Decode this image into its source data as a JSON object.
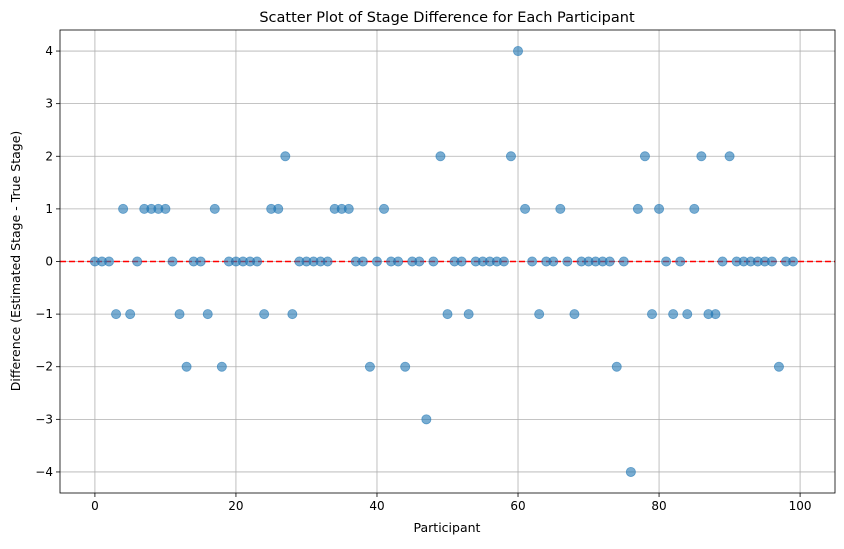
{
  "chart_data": {
    "type": "scatter",
    "title": "Scatter Plot of Stage Difference for Each Participant",
    "xlabel": "Participant",
    "ylabel": "Difference (Estimated Stage - True Stage)",
    "xlim": [
      -4.95,
      104.95
    ],
    "ylim": [
      -4.4,
      4.4
    ],
    "xticks": [
      0,
      20,
      40,
      60,
      80,
      100
    ],
    "yticks": [
      -4,
      -3,
      -2,
      -1,
      0,
      1,
      2,
      3,
      4
    ],
    "ytick_labels": [
      "−4",
      "−3",
      "−2",
      "−1",
      "0",
      "1",
      "2",
      "3",
      "4"
    ],
    "grid": true,
    "reference_line": {
      "y": 0,
      "color": "#ff0000",
      "style": "dashed"
    },
    "point_color": "#1f77b4",
    "x": [
      0,
      1,
      2,
      3,
      4,
      5,
      6,
      7,
      8,
      9,
      10,
      11,
      12,
      13,
      14,
      15,
      16,
      17,
      18,
      19,
      20,
      21,
      22,
      23,
      24,
      25,
      26,
      27,
      28,
      29,
      30,
      31,
      32,
      33,
      34,
      35,
      36,
      37,
      38,
      39,
      40,
      41,
      42,
      43,
      44,
      45,
      46,
      47,
      48,
      49,
      50,
      51,
      52,
      53,
      54,
      55,
      56,
      57,
      58,
      59,
      60,
      61,
      62,
      63,
      64,
      65,
      66,
      67,
      68,
      69,
      70,
      71,
      72,
      73,
      74,
      75,
      76,
      77,
      78,
      79,
      80,
      81,
      82,
      83,
      84,
      85,
      86,
      87,
      88,
      89,
      90,
      91,
      92,
      93,
      94,
      95,
      96,
      97,
      98,
      99
    ],
    "y": [
      0,
      0,
      0,
      -1,
      1,
      -1,
      0,
      1,
      1,
      1,
      1,
      0,
      -1,
      -2,
      0,
      0,
      -1,
      1,
      -2,
      0,
      0,
      0,
      0,
      0,
      -1,
      1,
      1,
      2,
      -1,
      0,
      0,
      0,
      0,
      0,
      1,
      1,
      1,
      0,
      0,
      -2,
      0,
      1,
      0,
      0,
      -2,
      0,
      0,
      -3,
      0,
      2,
      -1,
      0,
      0,
      -1,
      0,
      0,
      0,
      0,
      0,
      2,
      4,
      1,
      0,
      -1,
      0,
      0,
      1,
      0,
      -1,
      0,
      0,
      0,
      0,
      0,
      -2,
      0,
      -4,
      1,
      2,
      -1,
      1,
      0,
      -1,
      0,
      -1,
      1,
      2,
      -1,
      -1,
      0,
      2,
      0,
      0,
      0,
      0,
      0,
      0,
      -2,
      0,
      0
    ]
  }
}
